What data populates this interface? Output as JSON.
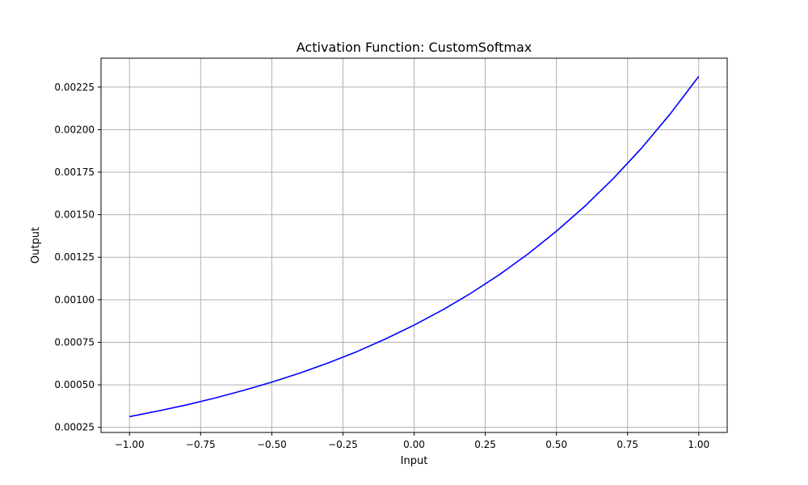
{
  "chart_data": {
    "type": "line",
    "title": "Activation Function: CustomSoftmax",
    "xlabel": "Input",
    "ylabel": "Output",
    "xlim": [
      -1.1,
      1.1
    ],
    "ylim": [
      0.00022,
      0.00242
    ],
    "grid": true,
    "x_ticks": [
      -1.0,
      -0.75,
      -0.5,
      -0.25,
      0.0,
      0.25,
      0.5,
      0.75,
      1.0
    ],
    "x_tick_labels": [
      "−1.00",
      "−0.75",
      "−0.50",
      "−0.25",
      "0.00",
      "0.25",
      "0.50",
      "0.75",
      "1.00"
    ],
    "y_ticks": [
      0.00025,
      0.0005,
      0.00075,
      0.001,
      0.00125,
      0.0015,
      0.00175,
      0.002,
      0.00225
    ],
    "y_tick_labels": [
      "0.00025",
      "0.00050",
      "0.00075",
      "0.00100",
      "0.00125",
      "0.00150",
      "0.00175",
      "0.00200",
      "0.00225"
    ],
    "series": [
      {
        "color": "#0000ff",
        "x": [
          -1.0,
          -0.9,
          -0.8,
          -0.7,
          -0.6,
          -0.5,
          -0.4,
          -0.3,
          -0.2,
          -0.1,
          0.0,
          0.1,
          0.2,
          0.3,
          0.4,
          0.5,
          0.6,
          0.7,
          0.8,
          0.9,
          1.0
        ],
        "y": [
          0.000313,
          0.000346,
          0.000382,
          0.000422,
          0.000467,
          0.000516,
          0.00057,
          0.00063,
          0.000696,
          0.00077,
          0.000851,
          0.00094,
          0.001039,
          0.001148,
          0.001269,
          0.001403,
          0.00155,
          0.001713,
          0.001893,
          0.002093,
          0.002313
        ]
      }
    ]
  }
}
